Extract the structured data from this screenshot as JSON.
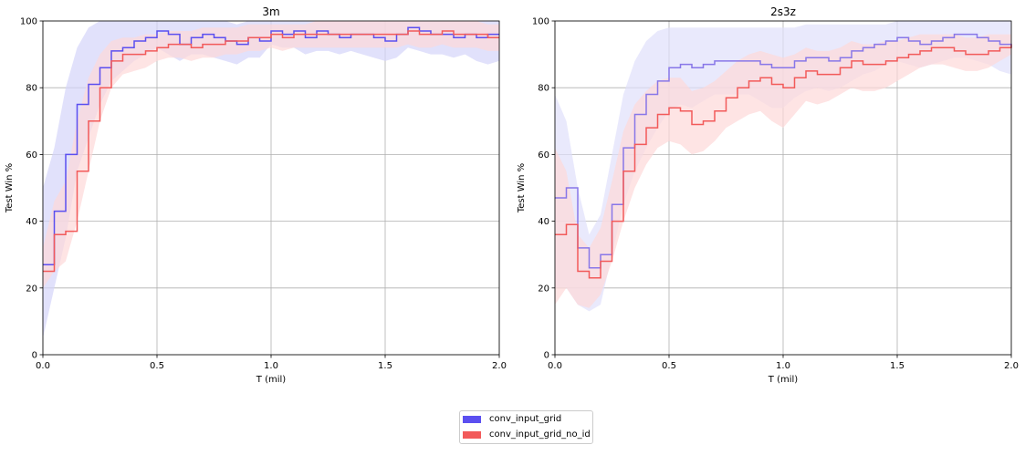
{
  "chart_data": [
    {
      "type": "line",
      "title": "3m",
      "xlabel": "T (mil)",
      "ylabel": "Test Win %",
      "xlim": [
        0,
        2.0
      ],
      "ylim": [
        0,
        100
      ],
      "xticks": [
        "0.0",
        "0.5",
        "1.0",
        "1.5",
        "2.0"
      ],
      "yticks": [
        "0",
        "20",
        "40",
        "60",
        "80",
        "100"
      ],
      "grid": true,
      "x": [
        0.0,
        0.05,
        0.1,
        0.15,
        0.2,
        0.25,
        0.3,
        0.35,
        0.4,
        0.45,
        0.5,
        0.55,
        0.6,
        0.65,
        0.7,
        0.75,
        0.8,
        0.85,
        0.9,
        0.95,
        1.0,
        1.05,
        1.1,
        1.15,
        1.2,
        1.25,
        1.3,
        1.35,
        1.4,
        1.45,
        1.5,
        1.55,
        1.6,
        1.65,
        1.7,
        1.75,
        1.8,
        1.85,
        1.9,
        1.95,
        2.0
      ],
      "series": [
        {
          "name": "conv_input_grid",
          "color": "#5b4ff0",
          "band_color": "#d4d4fa",
          "values": [
            27,
            43,
            60,
            75,
            81,
            86,
            91,
            92,
            94,
            95,
            97,
            96,
            93,
            95,
            96,
            95,
            94,
            93,
            95,
            94,
            97,
            96,
            97,
            95,
            97,
            96,
            95,
            96,
            96,
            95,
            94,
            96,
            98,
            97,
            96,
            96,
            95,
            96,
            95,
            96,
            96
          ],
          "lower": [
            5,
            20,
            35,
            55,
            65,
            75,
            82,
            85,
            88,
            90,
            92,
            90,
            88,
            90,
            90,
            89,
            88,
            87,
            89,
            89,
            93,
            92,
            92,
            90,
            91,
            91,
            90,
            91,
            90,
            89,
            88,
            89,
            92,
            91,
            90,
            90,
            89,
            90,
            88,
            87,
            88
          ],
          "upper": [
            50,
            62,
            80,
            92,
            98,
            100,
            100,
            100,
            100,
            100,
            100,
            100,
            100,
            100,
            100,
            100,
            100,
            99,
            100,
            100,
            100,
            100,
            100,
            100,
            100,
            100,
            100,
            100,
            100,
            100,
            100,
            100,
            100,
            100,
            100,
            100,
            100,
            100,
            100,
            100,
            100
          ]
        },
        {
          "name": "conv_input_grid_no_id",
          "color": "#f25a5a",
          "band_color": "#fdd9d9",
          "values": [
            25,
            36,
            37,
            55,
            70,
            80,
            88,
            90,
            90,
            91,
            92,
            93,
            93,
            92,
            93,
            93,
            94,
            94,
            95,
            95,
            96,
            95,
            96,
            96,
            96,
            96,
            96,
            96,
            96,
            96,
            96,
            96,
            97,
            96,
            96,
            97,
            96,
            96,
            96,
            95,
            95
          ],
          "lower": [
            20,
            25,
            28,
            40,
            55,
            70,
            80,
            84,
            85,
            86,
            88,
            89,
            89,
            88,
            89,
            89,
            90,
            90,
            91,
            91,
            92,
            91,
            92,
            92,
            92,
            92,
            92,
            92,
            92,
            92,
            92,
            92,
            93,
            92,
            92,
            93,
            92,
            92,
            92,
            91,
            91
          ],
          "upper": [
            32,
            46,
            52,
            70,
            83,
            90,
            94,
            95,
            95,
            96,
            96,
            97,
            97,
            97,
            98,
            98,
            98,
            98,
            99,
            99,
            99,
            99,
            99,
            99,
            100,
            100,
            100,
            100,
            100,
            100,
            100,
            100,
            100,
            100,
            100,
            100,
            100,
            100,
            100,
            99,
            99
          ]
        }
      ]
    },
    {
      "type": "line",
      "title": "2s3z",
      "xlabel": "T (mil)",
      "ylabel": "Test Win %",
      "xlim": [
        0,
        2.0
      ],
      "ylim": [
        0,
        100
      ],
      "xticks": [
        "0.0",
        "0.5",
        "1.0",
        "1.5",
        "2.0"
      ],
      "yticks": [
        "0",
        "20",
        "40",
        "60",
        "80",
        "100"
      ],
      "grid": true,
      "x": [
        0.0,
        0.05,
        0.1,
        0.15,
        0.2,
        0.25,
        0.3,
        0.35,
        0.4,
        0.45,
        0.5,
        0.55,
        0.6,
        0.65,
        0.7,
        0.75,
        0.8,
        0.85,
        0.9,
        0.95,
        1.0,
        1.05,
        1.1,
        1.15,
        1.2,
        1.25,
        1.3,
        1.35,
        1.4,
        1.45,
        1.5,
        1.55,
        1.6,
        1.65,
        1.7,
        1.75,
        1.8,
        1.85,
        1.9,
        1.95,
        2.0
      ],
      "series": [
        {
          "name": "conv_input_grid",
          "color": "#8877e8",
          "band_color": "#e0e0fb",
          "values": [
            47,
            50,
            32,
            26,
            30,
            45,
            62,
            72,
            78,
            82,
            86,
            87,
            86,
            87,
            88,
            88,
            88,
            88,
            87,
            86,
            86,
            88,
            89,
            89,
            88,
            89,
            91,
            92,
            93,
            94,
            95,
            94,
            93,
            94,
            95,
            96,
            96,
            95,
            94,
            93,
            92
          ],
          "lower": [
            20,
            20,
            15,
            13,
            15,
            30,
            45,
            55,
            62,
            68,
            73,
            75,
            74,
            76,
            78,
            78,
            78,
            78,
            76,
            74,
            74,
            77,
            79,
            80,
            79,
            80,
            82,
            84,
            85,
            87,
            88,
            87,
            86,
            87,
            88,
            89,
            89,
            88,
            87,
            85,
            84
          ],
          "upper": [
            78,
            70,
            50,
            36,
            42,
            60,
            78,
            88,
            94,
            97,
            98,
            98,
            98,
            98,
            98,
            98,
            98,
            98,
            98,
            98,
            98,
            98,
            99,
            99,
            99,
            99,
            99,
            99,
            99,
            99,
            100,
            100,
            100,
            100,
            100,
            100,
            100,
            100,
            100,
            100,
            100
          ]
        },
        {
          "name": "conv_input_grid_no_id",
          "color": "#f25a5a",
          "band_color": "#fdd9d9",
          "values": [
            36,
            39,
            25,
            23,
            28,
            40,
            55,
            63,
            68,
            72,
            74,
            73,
            69,
            70,
            73,
            77,
            80,
            82,
            83,
            81,
            80,
            83,
            85,
            84,
            84,
            86,
            88,
            87,
            87,
            88,
            89,
            90,
            91,
            92,
            92,
            91,
            90,
            90,
            91,
            92,
            93
          ],
          "lower": [
            15,
            20,
            15,
            14,
            18,
            28,
            40,
            50,
            57,
            62,
            64,
            63,
            60,
            61,
            64,
            68,
            70,
            72,
            73,
            70,
            68,
            72,
            76,
            75,
            76,
            78,
            80,
            79,
            79,
            80,
            82,
            84,
            86,
            87,
            87,
            86,
            85,
            85,
            86,
            88,
            90
          ],
          "upper": [
            62,
            55,
            36,
            32,
            38,
            52,
            67,
            75,
            79,
            82,
            83,
            83,
            79,
            80,
            82,
            85,
            88,
            90,
            91,
            90,
            89,
            90,
            92,
            91,
            91,
            92,
            94,
            93,
            93,
            94,
            94,
            95,
            96,
            96,
            96,
            96,
            95,
            95,
            96,
            96,
            96
          ]
        }
      ]
    }
  ],
  "legend": {
    "entries": [
      {
        "label": "conv_input_grid",
        "color": "#5b4ff0"
      },
      {
        "label": "conv_input_grid_no_id",
        "color": "#f25a5a"
      }
    ]
  }
}
